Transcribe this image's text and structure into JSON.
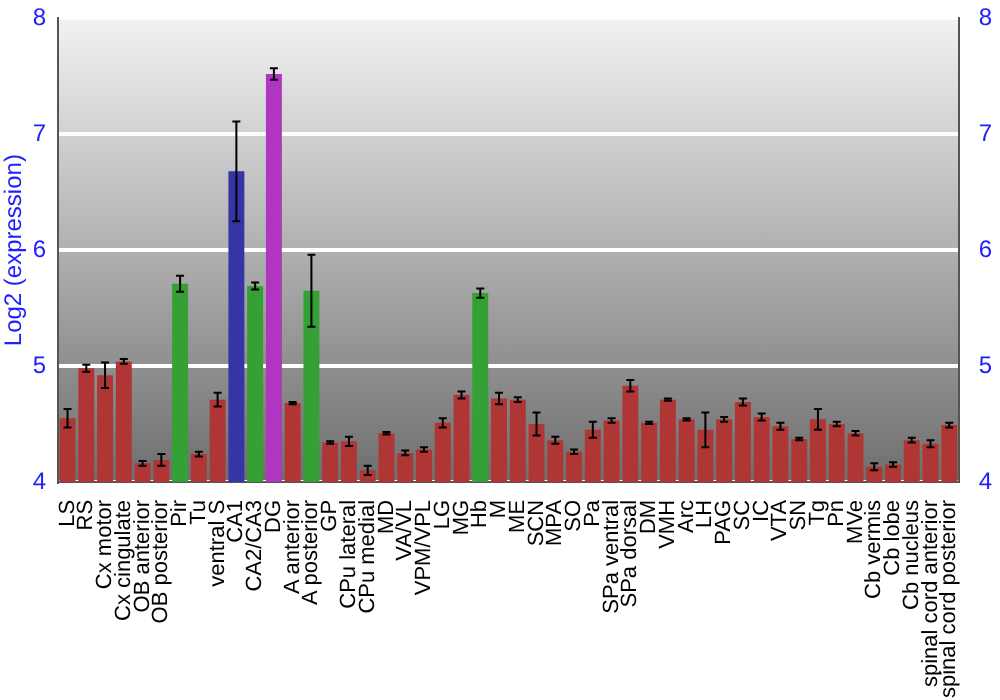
{
  "chart_data": {
    "type": "bar",
    "ylabel": "Log2 (expression)",
    "categories": [
      "LS",
      "RS",
      "Cx motor",
      "Cx cingulate",
      "OB anterior",
      "OB posterior",
      "Pir",
      "Tu",
      "ventral S",
      "CA1",
      "CA2/CA3",
      "DG",
      "A anterior",
      "A posterior",
      "GP",
      "CPu lateral",
      "CPu medial",
      "MD",
      "VA/VL",
      "VPM/VPL",
      "LG",
      "MG",
      "Hb",
      "M",
      "ME",
      "SCN",
      "MPA",
      "SO",
      "Pa",
      "SPa ventral",
      "SPa dorsal",
      "DM",
      "VMH",
      "Arc",
      "LH",
      "PAG",
      "SC",
      "IC",
      "VTA",
      "SN",
      "Tg",
      "Pn",
      "MVe",
      "Cb vermis",
      "Cb lobe",
      "Cb nucleus",
      "spinal cord anterior",
      "spinal cord posterior"
    ],
    "values": [
      4.55,
      4.98,
      4.92,
      5.04,
      4.16,
      4.19,
      5.71,
      4.24,
      4.71,
      6.68,
      5.69,
      7.52,
      4.68,
      5.65,
      4.34,
      4.35,
      4.1,
      4.42,
      4.25,
      4.28,
      4.51,
      4.75,
      5.63,
      4.72,
      4.71,
      4.5,
      4.36,
      4.26,
      4.45,
      4.53,
      4.83,
      4.51,
      4.71,
      4.54,
      4.45,
      4.54,
      4.69,
      4.56,
      4.48,
      4.37,
      4.54,
      4.5,
      4.42,
      4.13,
      4.15,
      4.36,
      4.33,
      4.49
    ],
    "errors": [
      0.08,
      0.03,
      0.11,
      0.02,
      0.02,
      0.05,
      0.07,
      0.02,
      0.06,
      0.43,
      0.03,
      0.05,
      0.01,
      0.31,
      0.01,
      0.04,
      0.04,
      0.01,
      0.02,
      0.02,
      0.04,
      0.03,
      0.04,
      0.05,
      0.02,
      0.1,
      0.03,
      0.02,
      0.07,
      0.02,
      0.05,
      0.01,
      0.01,
      0.01,
      0.15,
      0.02,
      0.03,
      0.03,
      0.03,
      0.01,
      0.09,
      0.02,
      0.02,
      0.03,
      0.02,
      0.02,
      0.03,
      0.02
    ],
    "colors": [
      "#b03535",
      "#b03535",
      "#b03535",
      "#b03535",
      "#b03535",
      "#b03535",
      "#35a035",
      "#b03535",
      "#b03535",
      "#3535a8",
      "#35a035",
      "#b035c0",
      "#b03535",
      "#35a035",
      "#b03535",
      "#b03535",
      "#b03535",
      "#b03535",
      "#b03535",
      "#b03535",
      "#b03535",
      "#b03535",
      "#35a035",
      "#b03535",
      "#b03535",
      "#b03535",
      "#b03535",
      "#b03535",
      "#b03535",
      "#b03535",
      "#b03535",
      "#b03535",
      "#b03535",
      "#b03535",
      "#b03535",
      "#b03535",
      "#b03535",
      "#b03535",
      "#b03535",
      "#b03535",
      "#b03535",
      "#b03535",
      "#b03535",
      "#b03535",
      "#b03535",
      "#b03535",
      "#b03535",
      "#b03535"
    ],
    "ylim": [
      4,
      8
    ],
    "yticks": [
      4,
      5,
      6,
      7,
      8
    ],
    "y2lim": [
      4,
      8
    ],
    "y2ticks": [
      4,
      5,
      6,
      7,
      8
    ],
    "grid": "y",
    "legend": false
  }
}
